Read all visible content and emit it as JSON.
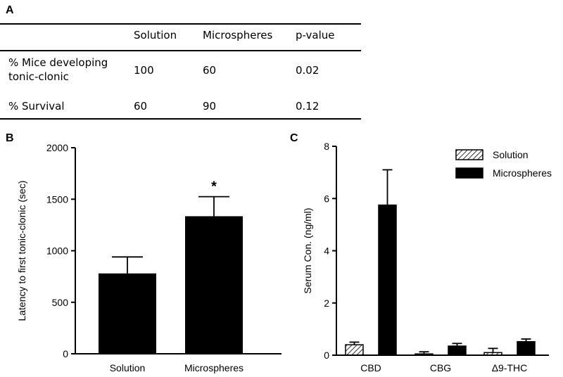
{
  "panel_a": {
    "label": "A",
    "table": {
      "headers": [
        "",
        "Solution",
        "Microspheres",
        "p-value"
      ],
      "rows": [
        {
          "label": "% Mice developing tonic-clonic",
          "values": [
            "100",
            "60",
            "0.02"
          ]
        },
        {
          "label": "% Survival",
          "values": [
            "60",
            "90",
            "0.12"
          ]
        }
      ]
    }
  },
  "panel_b": {
    "label": "B"
  },
  "panel_c": {
    "label": "C"
  },
  "chart_data": [
    {
      "type": "bar",
      "title": "",
      "ylabel": "Latency to first tonic-clonic (sec)",
      "xlabel": "",
      "categories": [
        "Solution",
        "Microspheres"
      ],
      "values": [
        780,
        1335
      ],
      "errors": [
        160,
        190
      ],
      "annotations": [
        {
          "category": "Microspheres",
          "text": "*"
        }
      ],
      "ylim": [
        0,
        2000
      ],
      "yticks": [
        0,
        500,
        1000,
        1500,
        2000
      ],
      "colors": [
        "#000000",
        "#000000"
      ],
      "grid": false
    },
    {
      "type": "bar",
      "title": "",
      "ylabel": "Serum Con. (ng/ml)",
      "xlabel": "",
      "categories": [
        "CBD",
        "CBG",
        "Δ9-THC"
      ],
      "series": [
        {
          "name": "Solution",
          "values": [
            0.4,
            0.05,
            0.1
          ],
          "errors": [
            0.1,
            0.08,
            0.16
          ],
          "fill": "hatched"
        },
        {
          "name": "Microspheres",
          "values": [
            5.75,
            0.35,
            0.52
          ],
          "errors": [
            1.35,
            0.1,
            0.1
          ],
          "fill": "#000000"
        }
      ],
      "ylim": [
        0,
        8
      ],
      "yticks": [
        0,
        2,
        4,
        6,
        8
      ],
      "legend_position": "top-right",
      "grid": false
    }
  ]
}
